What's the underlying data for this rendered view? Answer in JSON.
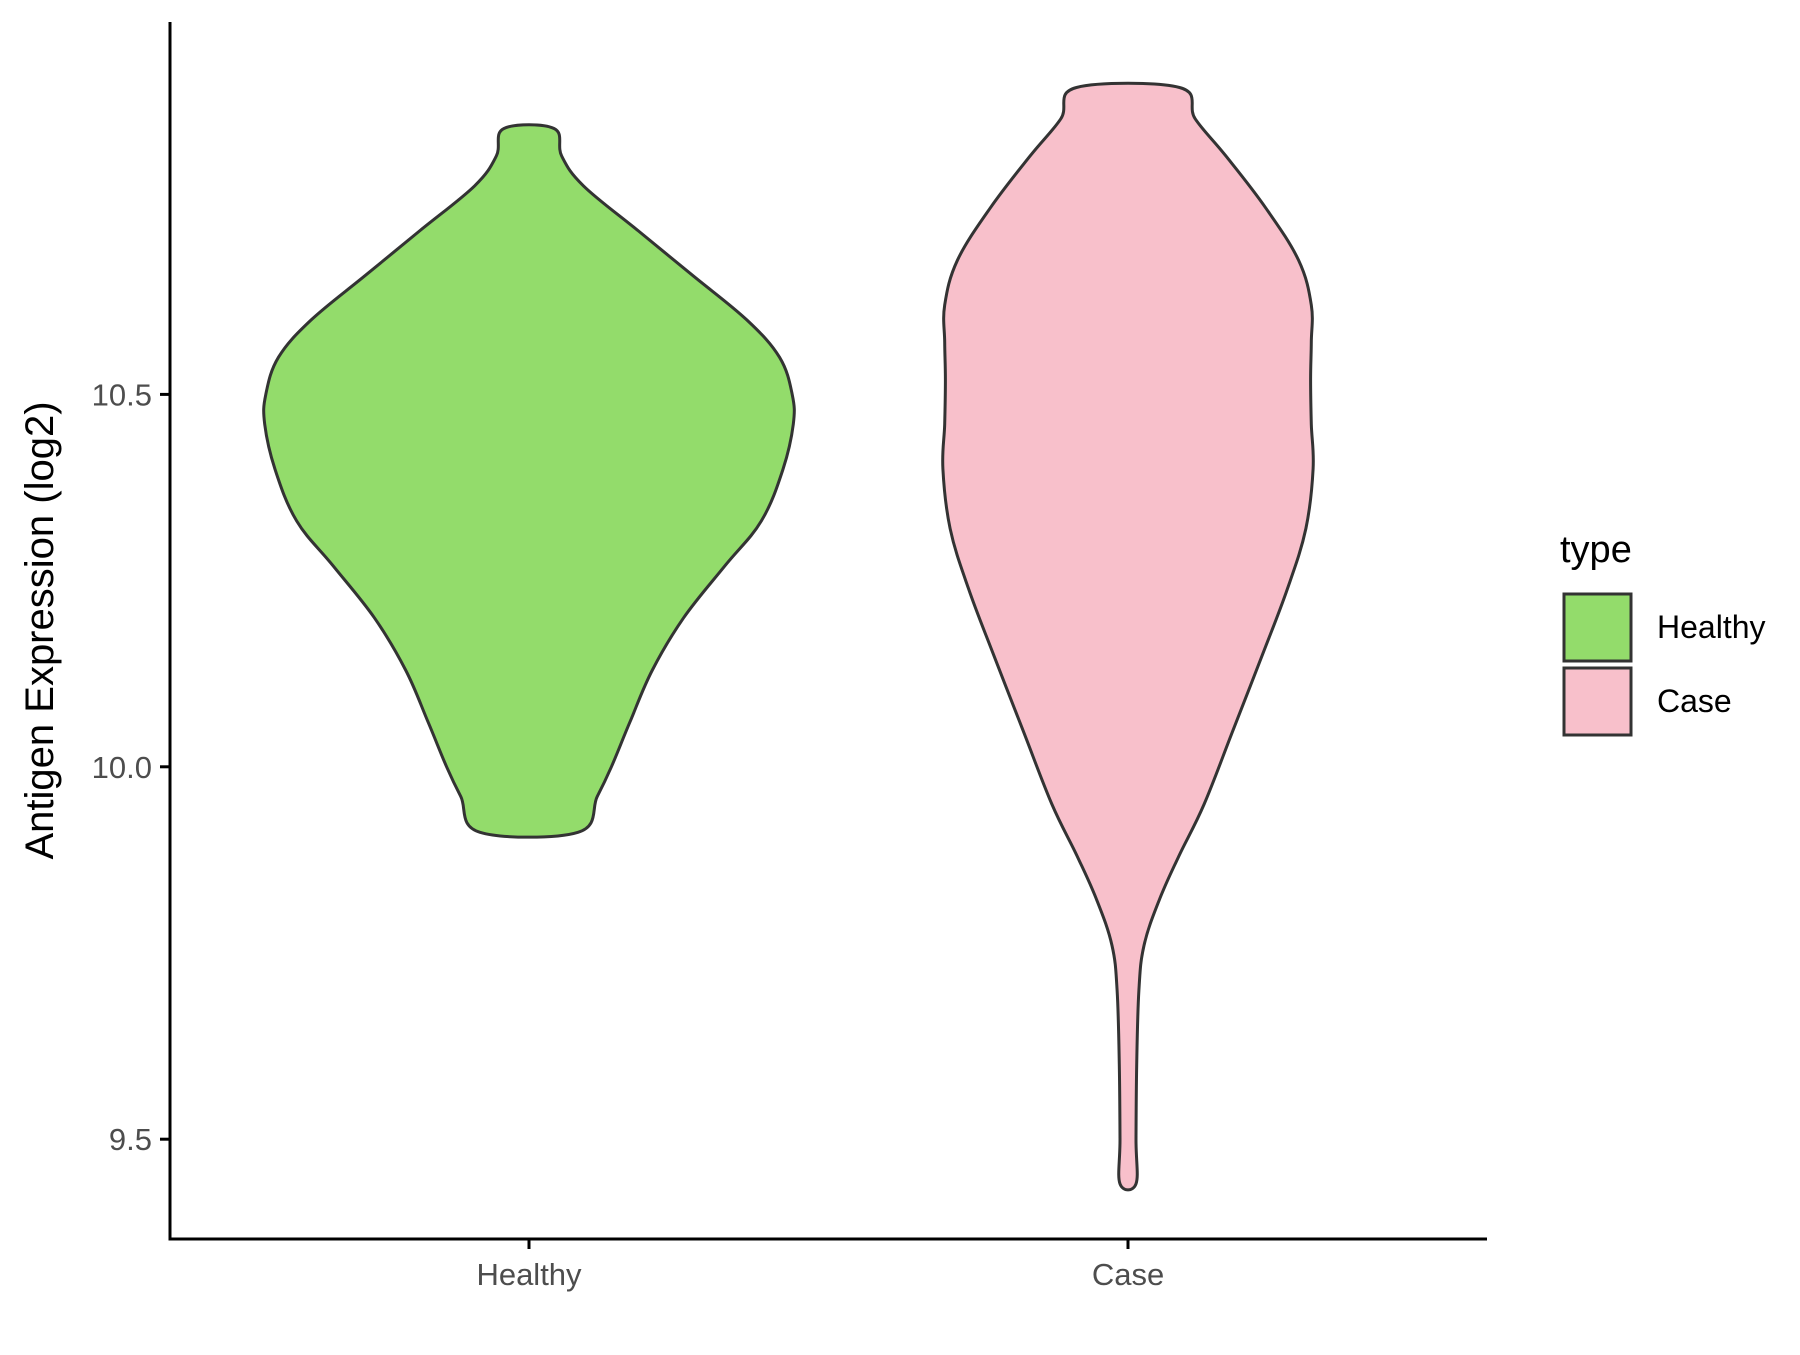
{
  "chart_data": {
    "type": "violin",
    "title": "",
    "xlabel": "",
    "ylabel": "Antigen Expression (log2)",
    "categories": [
      "Healthy",
      "Case"
    ],
    "ylim": [
      9.366,
      11.0
    ],
    "yticks": [
      {
        "value": 9.5,
        "label": "9.5"
      },
      {
        "value": 10.0,
        "label": "10.0"
      },
      {
        "value": 10.5,
        "label": "10.5"
      }
    ],
    "legend": {
      "title": "type",
      "position": "right",
      "items": [
        {
          "label": "Healthy",
          "color": "#93DC6B"
        },
        {
          "label": "Case",
          "color": "#F8C0CB"
        }
      ]
    },
    "outline_color": "#333333",
    "series": [
      {
        "category": "Healthy",
        "color": "#93DC6B",
        "min": 9.912,
        "max": 10.857,
        "density_profile": [
          [
            9.912,
            0.135
          ],
          [
            9.96,
            0.188
          ],
          [
            10.0,
            0.227
          ],
          [
            10.06,
            0.278
          ],
          [
            10.13,
            0.34
          ],
          [
            10.2,
            0.426
          ],
          [
            10.27,
            0.54
          ],
          [
            10.33,
            0.64
          ],
          [
            10.4,
            0.7
          ],
          [
            10.46,
            0.728
          ],
          [
            10.5,
            0.725
          ],
          [
            10.55,
            0.69
          ],
          [
            10.6,
            0.6
          ],
          [
            10.66,
            0.45
          ],
          [
            10.72,
            0.3
          ],
          [
            10.78,
            0.15
          ],
          [
            10.82,
            0.09
          ],
          [
            10.857,
            0.069
          ]
        ]
      },
      {
        "category": "Case",
        "color": "#F8C0CB",
        "min": 9.44,
        "max": 10.912,
        "density_profile": [
          [
            9.44,
            0.022
          ],
          [
            9.5,
            0.022
          ],
          [
            9.6,
            0.024
          ],
          [
            9.7,
            0.03
          ],
          [
            9.76,
            0.044
          ],
          [
            9.82,
            0.085
          ],
          [
            9.88,
            0.14
          ],
          [
            9.95,
            0.21
          ],
          [
            10.05,
            0.29
          ],
          [
            10.15,
            0.37
          ],
          [
            10.24,
            0.44
          ],
          [
            10.32,
            0.49
          ],
          [
            10.4,
            0.51
          ],
          [
            10.46,
            0.505
          ],
          [
            10.52,
            0.503
          ],
          [
            10.57,
            0.505
          ],
          [
            10.62,
            0.505
          ],
          [
            10.68,
            0.47
          ],
          [
            10.75,
            0.38
          ],
          [
            10.82,
            0.27
          ],
          [
            10.87,
            0.185
          ],
          [
            10.912,
            0.142
          ]
        ]
      }
    ]
  }
}
